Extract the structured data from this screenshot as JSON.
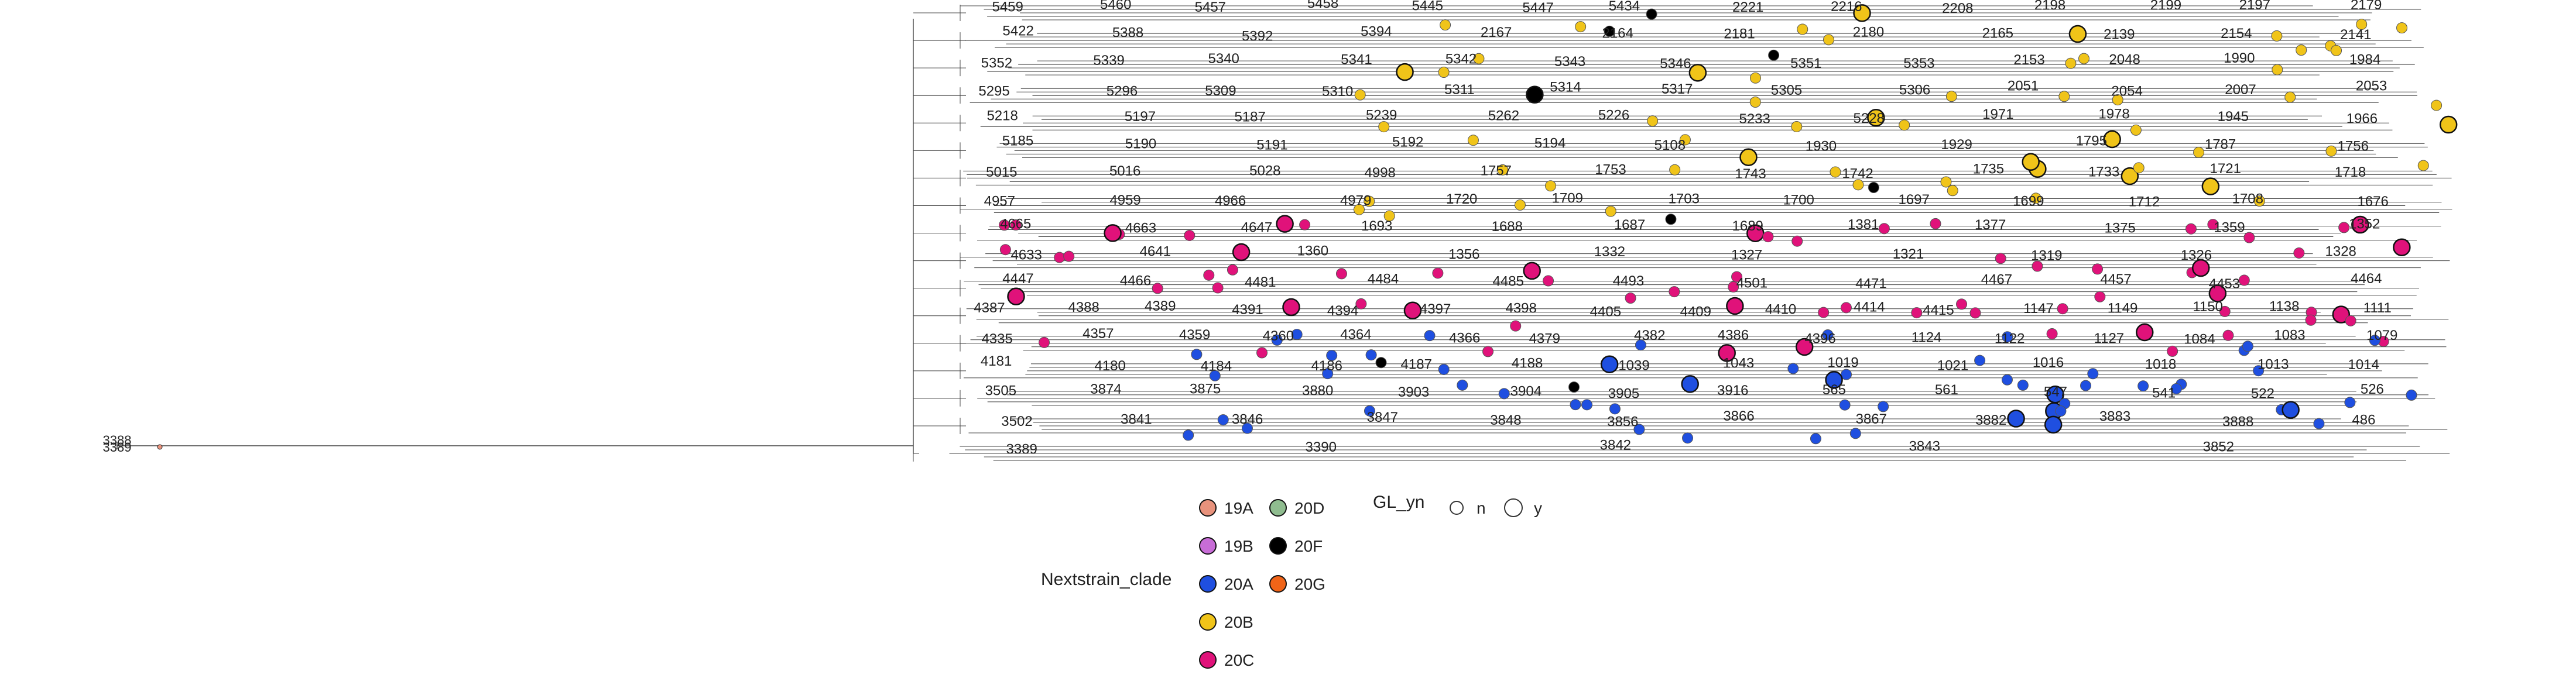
{
  "chart_data": {
    "type": "scatter",
    "subtype": "phylogenetic-tree",
    "title": "",
    "xlabel": "",
    "ylabel": "",
    "grid": false,
    "legend_placement": "bottom-center",
    "tree_lines_color": "#444444",
    "root_labels": [
      "3388",
      "3389"
    ],
    "clade_legend": {
      "title": "Nextstrain_clade",
      "entries": [
        {
          "label": "19A",
          "color": "#E8927C"
        },
        {
          "label": "19B",
          "color": "#C86DD7"
        },
        {
          "label": "20A",
          "color": "#1F4FE0"
        },
        {
          "label": "20B",
          "color": "#F0C419"
        },
        {
          "label": "20C",
          "color": "#E0127A"
        },
        {
          "label": "20D",
          "color": "#8FBC8F"
        },
        {
          "label": "20F",
          "color": "#000000"
        },
        {
          "label": "20G",
          "color": "#F06418"
        }
      ]
    },
    "gl_legend": {
      "title": "GL_yn",
      "entries": [
        {
          "label": "n",
          "size": "small"
        },
        {
          "label": "y",
          "size": "large"
        }
      ]
    },
    "rows": [
      {
        "y": 9,
        "labels": [
          "5459",
          "5460",
          "5457",
          "5458",
          "5445",
          "5447",
          "5434",
          "2221",
          "2216",
          "2208",
          "2198",
          "2199",
          "2197",
          "2179"
        ]
      },
      {
        "y": 10,
        "labels": [
          "5422",
          "5388",
          "5392",
          "5394",
          "2167",
          "2164",
          "2181",
          "2180",
          "2165",
          "2139",
          "2154",
          "2141"
        ]
      },
      {
        "y": 11,
        "labels": [
          "5352",
          "5339",
          "5340",
          "5341",
          "5342",
          "5343",
          "5346",
          "5351",
          "5353",
          "2153",
          "2048",
          "1990",
          "1984"
        ]
      },
      {
        "y": 12,
        "labels": [
          "5295",
          "5296",
          "5309",
          "5310",
          "5311",
          "5314",
          "5317",
          "5305",
          "5306",
          "2051",
          "2054",
          "2007",
          "2053"
        ]
      },
      {
        "y": 13,
        "labels": [
          "5218",
          "5197",
          "5187",
          "5239",
          "5262",
          "5226",
          "5233",
          "5228",
          "1971",
          "1978",
          "1945",
          "1966"
        ]
      },
      {
        "y": 14,
        "labels": [
          "5185",
          "5190",
          "5191",
          "5192",
          "5194",
          "5108",
          "1930",
          "1929",
          "1795",
          "1787",
          "1756"
        ]
      },
      {
        "y": 15,
        "labels": [
          "5015",
          "5016",
          "5028",
          "4998",
          "1757",
          "1753",
          "1743",
          "1742",
          "1735",
          "1733",
          "1721",
          "1718"
        ]
      },
      {
        "y": 16,
        "labels": [
          "4957",
          "4959",
          "4966",
          "4979",
          "1720",
          "1709",
          "1703",
          "1700",
          "1697",
          "1699",
          "1712",
          "1708",
          "1676"
        ]
      },
      {
        "y": 17,
        "labels": [
          "4665",
          "4663",
          "4647",
          "1693",
          "1688",
          "1687",
          "1689",
          "1381",
          "1377",
          "1375",
          "1359",
          "1352"
        ]
      },
      {
        "y": 18,
        "labels": [
          "4633",
          "4641",
          "1360",
          "1356",
          "1332",
          "1327",
          "1321",
          "1319",
          "1326",
          "1328"
        ]
      },
      {
        "y": 19,
        "labels": [
          "4447",
          "4466",
          "4481",
          "4484",
          "4485",
          "4493",
          "4501",
          "4471",
          "4467",
          "4457",
          "4453",
          "4464"
        ]
      },
      {
        "y": 20,
        "labels": [
          "4387",
          "4388",
          "4389",
          "4391",
          "4394",
          "4397",
          "4398",
          "4405",
          "4409",
          "4410",
          "4414",
          "4415",
          "1147",
          "1149",
          "1150",
          "1138",
          "1111"
        ]
      },
      {
        "y": 21,
        "labels": [
          "4335",
          "4357",
          "4359",
          "4360",
          "4364",
          "4366",
          "4379",
          "4382",
          "4386",
          "4396",
          "1124",
          "1122",
          "1127",
          "1084",
          "1083",
          "1079"
        ]
      },
      {
        "y": 22,
        "labels": [
          "4181",
          "4180",
          "4184",
          "4186",
          "4187",
          "4188",
          "1039",
          "1043",
          "1019",
          "1021",
          "1016",
          "1018",
          "1013",
          "1014"
        ]
      },
      {
        "y": 23,
        "labels": [
          "3505",
          "3874",
          "3875",
          "3880",
          "3903",
          "3904",
          "3905",
          "3916",
          "565",
          "561",
          "547",
          "541",
          "522",
          "526"
        ]
      },
      {
        "y": 24,
        "labels": [
          "3502",
          "3841",
          "3846",
          "3847",
          "3848",
          "3856",
          "3866",
          "3867",
          "3882",
          "3883",
          "3888",
          "486"
        ]
      },
      {
        "y": 25,
        "labels": [
          "3389",
          "3390",
          "3842",
          "3843",
          "3852"
        ]
      }
    ],
    "tips_shown_as_points": [
      {
        "clade": "20B",
        "count": 60
      },
      {
        "clade": "20C",
        "count": 70
      },
      {
        "clade": "20A",
        "count": 55
      },
      {
        "clade": "20F",
        "count": 8
      },
      {
        "clade": "19A",
        "count": 1
      }
    ]
  }
}
